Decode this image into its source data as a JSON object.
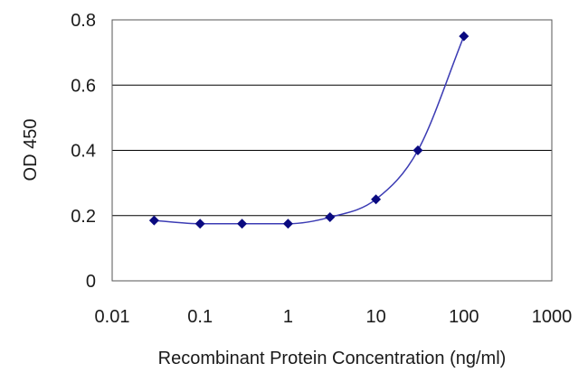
{
  "chart_data": {
    "type": "line",
    "title": "",
    "xlabel": "Recombinant Protein Concentration (ng/ml)",
    "ylabel": "OD 450",
    "x_scale": "log",
    "xlim": [
      0.01,
      1000
    ],
    "ylim": [
      0,
      0.8
    ],
    "x_ticks": [
      0.01,
      0.1,
      1,
      10,
      100,
      1000
    ],
    "x_tick_labels": [
      "0.01",
      "0.1",
      "1",
      "10",
      "100",
      "1000"
    ],
    "y_ticks": [
      0,
      0.2,
      0.4,
      0.6,
      0.8
    ],
    "y_tick_labels": [
      "0",
      "0.2",
      "0.4",
      "0.6",
      "0.8"
    ],
    "grid": "horizontal",
    "legend": "none",
    "colors": {
      "line": "#3c3cb4",
      "marker": "#0a0a80",
      "grid": "#000000",
      "frame": "#555555"
    },
    "series": [
      {
        "x": [
          0.03,
          0.1,
          0.3,
          1,
          3,
          10,
          30,
          100
        ],
        "y": [
          0.185,
          0.175,
          0.175,
          0.175,
          0.195,
          0.25,
          0.4,
          0.75
        ]
      }
    ]
  }
}
